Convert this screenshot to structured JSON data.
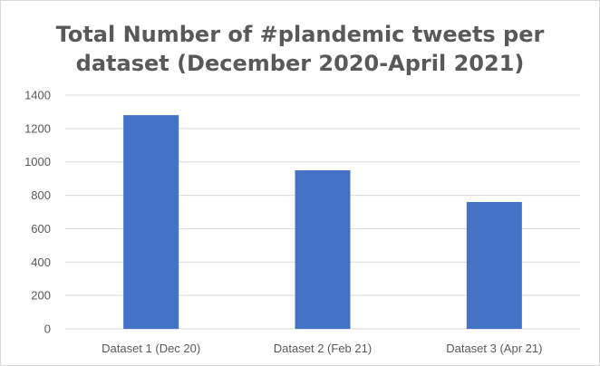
{
  "chart_data": {
    "type": "bar",
    "title_line1": "Total Number of #plandemic tweets per",
    "title_line2": "dataset (December 2020-April 2021)",
    "xlabel": "",
    "ylabel": "",
    "categories": [
      "Dataset 1 (Dec 20)",
      "Dataset 2 (Feb 21)",
      "Dataset 3 (Apr 21)"
    ],
    "values": [
      1280,
      950,
      760
    ],
    "ylim": [
      0,
      1400
    ],
    "yticks": [
      0,
      200,
      400,
      600,
      800,
      1000,
      1200,
      1400
    ],
    "grid": true,
    "legend": "none",
    "bar_color": "#4472c4",
    "grid_color": "#d9d9d9"
  }
}
